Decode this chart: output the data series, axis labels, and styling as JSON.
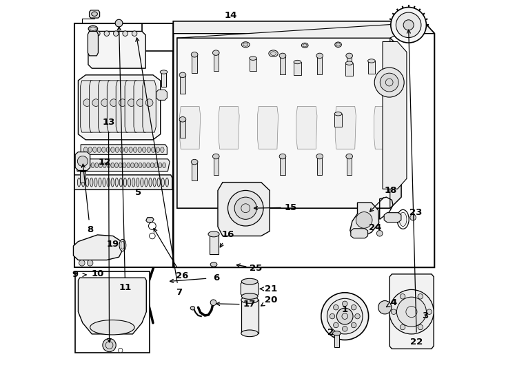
{
  "bg": "#ffffff",
  "lc": "#000000",
  "fig_w": 7.34,
  "fig_h": 5.4,
  "dpi": 100,
  "numbers": [
    [
      1,
      0.748,
      0.862,
      0.748,
      0.84
    ],
    [
      2,
      0.716,
      0.898,
      0.72,
      0.878
    ],
    [
      3,
      0.96,
      0.862,
      0.94,
      0.862
    ],
    [
      4,
      0.882,
      0.855,
      0.882,
      0.855
    ],
    [
      5,
      0.19,
      0.53,
      0.19,
      0.53
    ],
    [
      6,
      0.393,
      0.745,
      0.36,
      0.762
    ],
    [
      7,
      0.3,
      0.8,
      0.29,
      0.78
    ],
    [
      8,
      0.062,
      0.618,
      0.062,
      0.618
    ],
    [
      9,
      0.028,
      0.76,
      0.028,
      0.76
    ],
    [
      10,
      0.082,
      0.742,
      0.082,
      0.742
    ],
    [
      11,
      0.155,
      0.79,
      0.155,
      0.79
    ],
    [
      12,
      0.1,
      0.43,
      0.1,
      0.43
    ],
    [
      13,
      0.112,
      0.32,
      0.112,
      0.32
    ],
    [
      14,
      0.44,
      0.945,
      0.44,
      0.945
    ],
    [
      15,
      0.6,
      0.555,
      0.565,
      0.565
    ],
    [
      16,
      0.435,
      0.638,
      0.435,
      0.638
    ],
    [
      17,
      0.487,
      0.826,
      0.46,
      0.832
    ],
    [
      18,
      0.872,
      0.518,
      0.82,
      0.528
    ],
    [
      19,
      0.122,
      0.66,
      0.1,
      0.66
    ],
    [
      20,
      0.548,
      0.118,
      0.52,
      0.128
    ],
    [
      21,
      0.548,
      0.178,
      0.52,
      0.178
    ],
    [
      22,
      0.94,
      0.928,
      0.905,
      0.928
    ],
    [
      23,
      0.938,
      0.578,
      0.908,
      0.585
    ],
    [
      24,
      0.83,
      0.618,
      0.8,
      0.622
    ],
    [
      25,
      0.508,
      0.728,
      0.46,
      0.718
    ],
    [
      26,
      0.308,
      0.742,
      0.308,
      0.742
    ]
  ]
}
